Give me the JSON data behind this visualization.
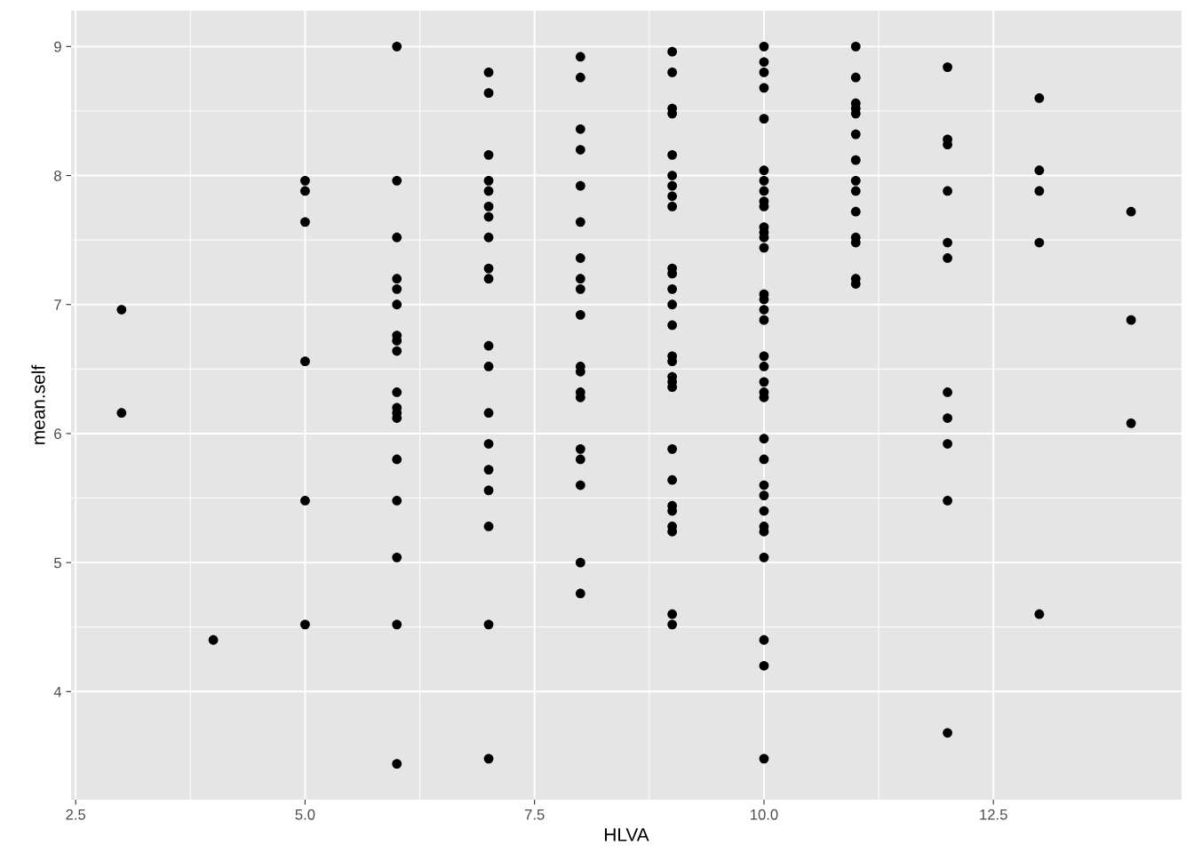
{
  "chart_data": {
    "type": "scatter",
    "xlabel": "HLVA",
    "ylabel": "mean.self",
    "xlim": [
      2.45,
      14.55
    ],
    "ylim": [
      3.162,
      9.278
    ],
    "xticks": [
      {
        "value": 2.5,
        "label": "2.5"
      },
      {
        "value": 5,
        "label": "5.0"
      },
      {
        "value": 7.5,
        "label": "7.5"
      },
      {
        "value": 10,
        "label": "10.0"
      },
      {
        "value": 12.5,
        "label": "12.5"
      }
    ],
    "yticks": [
      4,
      5,
      6,
      7,
      8,
      9
    ],
    "grid": true,
    "marker": "circle",
    "legend": false,
    "series": [
      {
        "color": "#000000",
        "x": [
          3,
          3,
          4,
          5,
          5,
          5,
          5,
          5,
          5,
          6,
          6,
          6,
          6,
          6,
          6,
          6,
          6,
          6,
          6,
          6,
          6,
          6,
          6,
          6,
          6,
          6,
          6,
          7,
          7,
          7,
          7,
          7,
          7,
          7,
          7,
          7,
          7,
          7,
          7,
          7,
          7,
          7,
          7,
          7,
          7,
          7,
          8,
          8,
          8,
          8,
          8,
          8,
          8,
          8,
          8,
          8,
          8,
          8,
          8,
          8,
          8,
          8,
          8,
          8,
          8,
          9,
          9,
          9,
          9,
          9,
          9,
          9,
          9,
          9,
          9,
          9,
          9,
          9,
          9,
          9,
          9,
          9,
          9,
          9,
          9,
          9,
          9,
          9,
          9,
          9,
          9,
          9,
          10,
          10,
          10,
          10,
          10,
          10,
          10,
          10,
          10,
          10,
          10,
          10,
          10,
          10,
          10,
          10,
          10,
          10,
          10,
          10,
          10,
          10,
          10,
          10,
          10,
          10,
          10,
          10,
          10,
          10,
          10,
          10,
          10,
          10,
          11,
          11,
          11,
          11,
          11,
          11,
          11,
          11,
          11,
          11,
          11,
          11,
          11,
          11,
          12,
          12,
          12,
          12,
          12,
          12,
          12,
          12,
          12,
          12,
          12,
          13,
          13,
          13,
          13,
          13,
          14,
          14,
          14
        ],
        "values": [
          6.96,
          6.16,
          4.4,
          7.96,
          7.88,
          7.64,
          6.56,
          5.48,
          4.52,
          9.0,
          7.96,
          7.52,
          7.2,
          7.12,
          7.0,
          6.76,
          6.72,
          6.64,
          6.32,
          6.2,
          6.16,
          6.12,
          5.8,
          5.48,
          5.04,
          4.52,
          3.44,
          8.8,
          8.64,
          8.16,
          7.96,
          7.88,
          7.76,
          7.68,
          7.52,
          7.28,
          7.2,
          6.68,
          6.52,
          6.16,
          5.92,
          5.72,
          5.56,
          5.28,
          4.52,
          3.48,
          8.92,
          8.76,
          8.36,
          8.2,
          7.92,
          7.64,
          7.36,
          7.2,
          7.12,
          6.92,
          6.52,
          6.48,
          6.32,
          6.28,
          5.88,
          5.8,
          5.6,
          5.0,
          4.76,
          8.96,
          8.8,
          8.52,
          8.48,
          8.16,
          8.0,
          7.92,
          7.84,
          7.76,
          7.28,
          7.24,
          7.12,
          7.0,
          6.84,
          6.6,
          6.56,
          6.44,
          6.4,
          6.36,
          5.88,
          5.64,
          5.44,
          5.4,
          5.28,
          5.24,
          4.6,
          4.52,
          9.0,
          8.88,
          8.8,
          8.68,
          8.44,
          8.04,
          7.96,
          7.88,
          7.8,
          7.76,
          7.6,
          7.56,
          7.52,
          7.44,
          7.08,
          7.04,
          6.96,
          6.88,
          6.6,
          6.52,
          6.4,
          6.32,
          6.28,
          5.96,
          5.8,
          5.6,
          5.52,
          5.4,
          5.28,
          5.24,
          5.04,
          4.4,
          4.2,
          3.48,
          9.0,
          8.76,
          8.56,
          8.52,
          8.48,
          8.32,
          8.12,
          7.96,
          7.88,
          7.72,
          7.52,
          7.48,
          7.2,
          7.16,
          8.84,
          8.28,
          8.24,
          7.88,
          7.48,
          7.36,
          6.32,
          6.12,
          5.92,
          5.48,
          3.68,
          8.6,
          8.04,
          7.88,
          7.48,
          4.6,
          7.72,
          6.88,
          6.08
        ]
      }
    ]
  }
}
